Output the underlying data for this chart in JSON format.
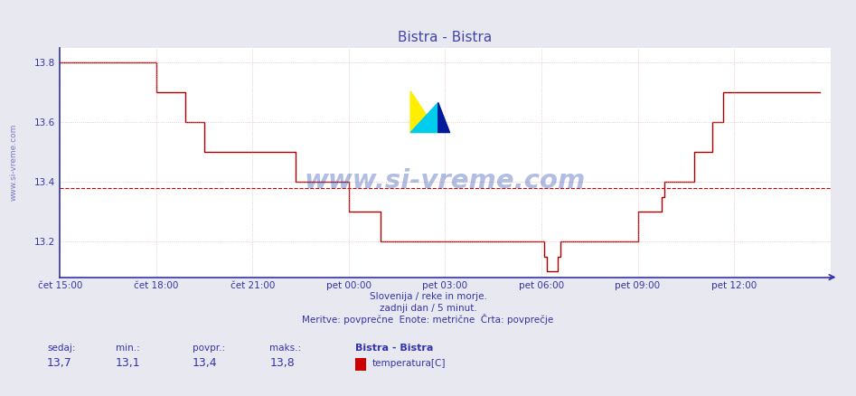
{
  "title": "Bistra - Bistra",
  "title_color": "#4444aa",
  "bg_color": "#e8e8f0",
  "plot_bg_color": "#ffffff",
  "line_color": "#aa0000",
  "avg_line_color": "#cc0000",
  "grid_color": "#ddaaaa",
  "axis_color": "#3333aa",
  "text_color": "#3333aa",
  "watermark_text": "www.si-vreme.com",
  "watermark_color": "#2244aa",
  "subtitle1": "Slovenija / reke in morje.",
  "subtitle2": "zadnji dan / 5 minut.",
  "subtitle3": "Meritve: povprečne  Enote: metrične  Črta: povprečje",
  "legend_title": "Bistra - Bistra",
  "legend_label": "temperatura[C]",
  "legend_color": "#cc0000",
  "stat_labels": [
    "sedaj:",
    "min.:",
    "povpr.:",
    "maks.:"
  ],
  "stat_values": [
    "13,7",
    "13,1",
    "13,4",
    "13,8"
  ],
  "ylim_min": 13.08,
  "ylim_max": 13.85,
  "avg_value": 13.38,
  "yticks": [
    13.2,
    13.4,
    13.6,
    13.8
  ],
  "xtick_labels": [
    "čet 15:00",
    "čet 18:00",
    "čet 21:00",
    "pet 00:00",
    "pet 03:00",
    "pet 06:00",
    "pet 09:00",
    "pet 12:00"
  ],
  "xtick_positions": [
    0,
    36,
    72,
    108,
    144,
    180,
    216,
    252
  ],
  "total_points": 289,
  "temp_data": [
    13.8,
    13.8,
    13.8,
    13.8,
    13.8,
    13.8,
    13.8,
    13.8,
    13.8,
    13.8,
    13.8,
    13.8,
    13.8,
    13.8,
    13.8,
    13.8,
    13.8,
    13.8,
    13.8,
    13.8,
    13.8,
    13.8,
    13.8,
    13.8,
    13.8,
    13.8,
    13.8,
    13.8,
    13.8,
    13.8,
    13.8,
    13.8,
    13.8,
    13.8,
    13.8,
    13.8,
    13.7,
    13.7,
    13.7,
    13.7,
    13.7,
    13.7,
    13.7,
    13.7,
    13.7,
    13.7,
    13.7,
    13.6,
    13.6,
    13.6,
    13.6,
    13.6,
    13.6,
    13.6,
    13.5,
    13.5,
    13.5,
    13.5,
    13.5,
    13.5,
    13.5,
    13.5,
    13.5,
    13.5,
    13.5,
    13.5,
    13.5,
    13.5,
    13.5,
    13.5,
    13.5,
    13.5,
    13.5,
    13.5,
    13.5,
    13.5,
    13.5,
    13.5,
    13.5,
    13.5,
    13.5,
    13.5,
    13.5,
    13.5,
    13.5,
    13.5,
    13.5,
    13.5,
    13.4,
    13.4,
    13.4,
    13.4,
    13.4,
    13.4,
    13.4,
    13.4,
    13.4,
    13.4,
    13.4,
    13.4,
    13.4,
    13.4,
    13.4,
    13.4,
    13.4,
    13.4,
    13.4,
    13.4,
    13.3,
    13.3,
    13.3,
    13.3,
    13.3,
    13.3,
    13.3,
    13.3,
    13.3,
    13.3,
    13.3,
    13.3,
    13.2,
    13.2,
    13.2,
    13.2,
    13.2,
    13.2,
    13.2,
    13.2,
    13.2,
    13.2,
    13.2,
    13.2,
    13.2,
    13.2,
    13.2,
    13.2,
    13.2,
    13.2,
    13.2,
    13.2,
    13.2,
    13.2,
    13.2,
    13.2,
    13.2,
    13.2,
    13.2,
    13.2,
    13.2,
    13.2,
    13.2,
    13.2,
    13.2,
    13.2,
    13.2,
    13.2,
    13.2,
    13.2,
    13.2,
    13.2,
    13.2,
    13.2,
    13.2,
    13.2,
    13.2,
    13.2,
    13.2,
    13.2,
    13.2,
    13.2,
    13.2,
    13.2,
    13.2,
    13.2,
    13.2,
    13.2,
    13.2,
    13.2,
    13.2,
    13.2,
    13.2,
    13.15,
    13.1,
    13.1,
    13.1,
    13.1,
    13.15,
    13.2,
    13.2,
    13.2,
    13.2,
    13.2,
    13.2,
    13.2,
    13.2,
    13.2,
    13.2,
    13.2,
    13.2,
    13.2,
    13.2,
    13.2,
    13.2,
    13.2,
    13.2,
    13.2,
    13.2,
    13.2,
    13.2,
    13.2,
    13.2,
    13.2,
    13.2,
    13.2,
    13.2,
    13.2,
    13.3,
    13.3,
    13.3,
    13.3,
    13.3,
    13.3,
    13.3,
    13.3,
    13.3,
    13.35,
    13.4,
    13.4,
    13.4,
    13.4,
    13.4,
    13.4,
    13.4,
    13.4,
    13.4,
    13.4,
    13.4,
    13.5,
    13.5,
    13.5,
    13.5,
    13.5,
    13.5,
    13.5,
    13.6,
    13.6,
    13.6,
    13.6,
    13.7,
    13.7,
    13.7,
    13.7,
    13.7,
    13.7,
    13.7,
    13.7,
    13.7,
    13.7,
    13.7,
    13.7,
    13.7,
    13.7,
    13.7,
    13.7,
    13.7,
    13.7,
    13.7,
    13.7,
    13.7,
    13.7,
    13.7,
    13.7,
    13.7,
    13.7,
    13.7,
    13.7,
    13.7,
    13.7,
    13.7,
    13.7,
    13.7,
    13.7,
    13.7,
    13.7,
    13.7
  ]
}
